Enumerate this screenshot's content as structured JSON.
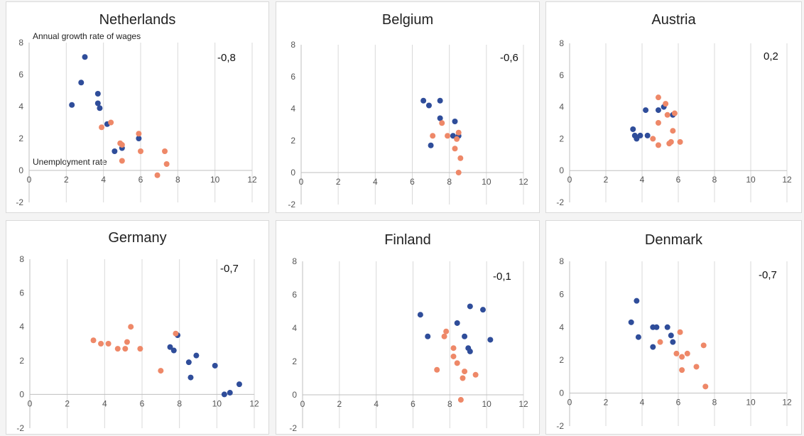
{
  "colors": {
    "series_a": "#2f4d9a",
    "series_b": "#ee8868",
    "grid": "#d9d9d9"
  },
  "chart_data": [
    {
      "type": "scatter",
      "title": "Netherlands",
      "correlation": "-0,8",
      "annotation_y": "Annual growth rate of wages",
      "annotation_x": "Unemployment rate",
      "xlim": [
        0,
        12
      ],
      "ylim": [
        -2,
        8
      ],
      "xticks": [
        "0",
        "2",
        "4",
        "6",
        "8",
        "10",
        "12"
      ],
      "yticks": [
        "-2",
        "0",
        "2",
        "4",
        "6",
        "8"
      ],
      "grid": true,
      "series": [
        {
          "color": "#2f4d9a",
          "points": [
            [
              2.3,
              4.1
            ],
            [
              2.8,
              5.5
            ],
            [
              3.0,
              7.1
            ],
            [
              3.7,
              4.8
            ],
            [
              3.7,
              4.2
            ],
            [
              3.8,
              3.9
            ],
            [
              4.2,
              2.9
            ],
            [
              4.6,
              1.2
            ],
            [
              5.0,
              1.4
            ],
            [
              5.9,
              2.0
            ]
          ]
        },
        {
          "color": "#ee8868",
          "points": [
            [
              3.9,
              2.7
            ],
            [
              4.4,
              3.0
            ],
            [
              4.9,
              1.7
            ],
            [
              5.0,
              1.6
            ],
            [
              5.0,
              0.6
            ],
            [
              5.9,
              2.3
            ],
            [
              6.0,
              1.2
            ],
            [
              6.9,
              -0.3
            ],
            [
              7.3,
              1.2
            ],
            [
              7.4,
              0.4
            ]
          ]
        }
      ]
    },
    {
      "type": "scatter",
      "title": "Belgium",
      "correlation": "-0,6",
      "xlim": [
        0,
        12
      ],
      "ylim": [
        -2,
        8
      ],
      "xticks": [
        "0",
        "2",
        "4",
        "6",
        "8",
        "10",
        "12"
      ],
      "yticks": [
        "-2",
        "0",
        "2",
        "4",
        "6",
        "8"
      ],
      "grid": true,
      "series": [
        {
          "color": "#2f4d9a",
          "points": [
            [
              6.6,
              4.5
            ],
            [
              6.9,
              4.2
            ],
            [
              7.0,
              1.7
            ],
            [
              7.5,
              4.5
            ],
            [
              7.5,
              3.4
            ],
            [
              8.2,
              2.3
            ],
            [
              8.3,
              3.2
            ],
            [
              8.5,
              2.3
            ]
          ]
        },
        {
          "color": "#ee8868",
          "points": [
            [
              7.1,
              2.3
            ],
            [
              7.6,
              3.1
            ],
            [
              7.9,
              2.3
            ],
            [
              8.3,
              1.5
            ],
            [
              8.4,
              2.1
            ],
            [
              8.5,
              2.5
            ],
            [
              8.6,
              0.9
            ],
            [
              8.5,
              0.0
            ]
          ]
        }
      ]
    },
    {
      "type": "scatter",
      "title": "Austria",
      "correlation": "0,2",
      "xlim": [
        0,
        12
      ],
      "ylim": [
        -2,
        8
      ],
      "xticks": [
        "0",
        "2",
        "4",
        "6",
        "8",
        "10",
        "12"
      ],
      "yticks": [
        "-2",
        "0",
        "2",
        "4",
        "6",
        "8"
      ],
      "grid": true,
      "series": [
        {
          "color": "#2f4d9a",
          "points": [
            [
              3.5,
              2.6
            ],
            [
              3.6,
              2.2
            ],
            [
              3.7,
              2.0
            ],
            [
              3.9,
              2.2
            ],
            [
              4.2,
              3.8
            ],
            [
              4.3,
              2.2
            ],
            [
              4.9,
              3.8
            ],
            [
              5.2,
              4.0
            ],
            [
              5.7,
              3.5
            ]
          ]
        },
        {
          "color": "#ee8868",
          "points": [
            [
              4.6,
              2.0
            ],
            [
              4.9,
              4.6
            ],
            [
              4.9,
              3.0
            ],
            [
              4.9,
              1.6
            ],
            [
              5.3,
              4.2
            ],
            [
              5.4,
              3.5
            ],
            [
              5.5,
              1.7
            ],
            [
              5.6,
              1.8
            ],
            [
              5.7,
              2.5
            ],
            [
              5.8,
              3.6
            ],
            [
              6.1,
              1.8
            ]
          ]
        }
      ]
    },
    {
      "type": "scatter",
      "title": "Germany",
      "correlation": "-0,7",
      "xlim": [
        0,
        12
      ],
      "ylim": [
        -2,
        8
      ],
      "xticks": [
        "0",
        "2",
        "4",
        "6",
        "8",
        "10",
        "12"
      ],
      "yticks": [
        "-2",
        "0",
        "2",
        "4",
        "6",
        "8"
      ],
      "grid": true,
      "series": [
        {
          "color": "#2f4d9a",
          "points": [
            [
              7.5,
              2.8
            ],
            [
              7.7,
              2.6
            ],
            [
              7.9,
              3.5
            ],
            [
              8.5,
              1.9
            ],
            [
              8.6,
              1.0
            ],
            [
              8.9,
              2.3
            ],
            [
              9.9,
              1.7
            ],
            [
              10.4,
              0.0
            ],
            [
              10.7,
              0.1
            ],
            [
              11.2,
              0.6
            ]
          ]
        },
        {
          "color": "#ee8868",
          "points": [
            [
              3.4,
              3.2
            ],
            [
              3.8,
              3.0
            ],
            [
              4.2,
              3.0
            ],
            [
              4.7,
              2.7
            ],
            [
              5.1,
              2.7
            ],
            [
              5.2,
              3.1
            ],
            [
              5.4,
              4.0
            ],
            [
              5.9,
              2.7
            ],
            [
              7.0,
              1.4
            ],
            [
              7.8,
              3.6
            ]
          ]
        }
      ]
    },
    {
      "type": "scatter",
      "title": "Finland",
      "correlation": "-0,1",
      "xlim": [
        0,
        12
      ],
      "ylim": [
        -2,
        8
      ],
      "xticks": [
        "0",
        "2",
        "4",
        "6",
        "8",
        "10",
        "12"
      ],
      "yticks": [
        "-2",
        "0",
        "2",
        "4",
        "6",
        "8"
      ],
      "grid": true,
      "series": [
        {
          "color": "#2f4d9a",
          "points": [
            [
              6.4,
              4.8
            ],
            [
              6.8,
              3.5
            ],
            [
              8.4,
              4.3
            ],
            [
              8.8,
              3.5
            ],
            [
              9.0,
              2.8
            ],
            [
              9.1,
              2.6
            ],
            [
              9.1,
              5.3
            ],
            [
              9.8,
              5.1
            ],
            [
              10.2,
              3.3
            ]
          ]
        },
        {
          "color": "#ee8868",
          "points": [
            [
              7.3,
              1.5
            ],
            [
              7.7,
              3.5
            ],
            [
              7.8,
              3.8
            ],
            [
              8.2,
              2.3
            ],
            [
              8.2,
              2.8
            ],
            [
              8.4,
              1.9
            ],
            [
              8.6,
              -0.3
            ],
            [
              8.7,
              1.0
            ],
            [
              8.8,
              1.4
            ],
            [
              9.4,
              1.2
            ]
          ]
        }
      ]
    },
    {
      "type": "scatter",
      "title": "Denmark",
      "correlation": "-0,7",
      "xlim": [
        0,
        12
      ],
      "ylim": [
        -2,
        8
      ],
      "xticks": [
        "0",
        "2",
        "4",
        "6",
        "8",
        "10",
        "12"
      ],
      "yticks": [
        "-2",
        "0",
        "2",
        "4",
        "6",
        "8"
      ],
      "grid": true,
      "series": [
        {
          "color": "#2f4d9a",
          "points": [
            [
              3.4,
              4.3
            ],
            [
              3.7,
              5.6
            ],
            [
              3.8,
              3.4
            ],
            [
              4.6,
              4.0
            ],
            [
              4.6,
              2.8
            ],
            [
              4.8,
              4.0
            ],
            [
              5.4,
              4.0
            ],
            [
              5.6,
              3.5
            ],
            [
              5.7,
              3.1
            ]
          ]
        },
        {
          "color": "#ee8868",
          "points": [
            [
              5.0,
              3.1
            ],
            [
              5.9,
              2.4
            ],
            [
              6.1,
              3.7
            ],
            [
              6.2,
              2.2
            ],
            [
              6.2,
              1.4
            ],
            [
              6.5,
              2.4
            ],
            [
              7.0,
              1.6
            ],
            [
              7.4,
              2.9
            ],
            [
              7.5,
              0.4
            ]
          ]
        }
      ]
    }
  ]
}
